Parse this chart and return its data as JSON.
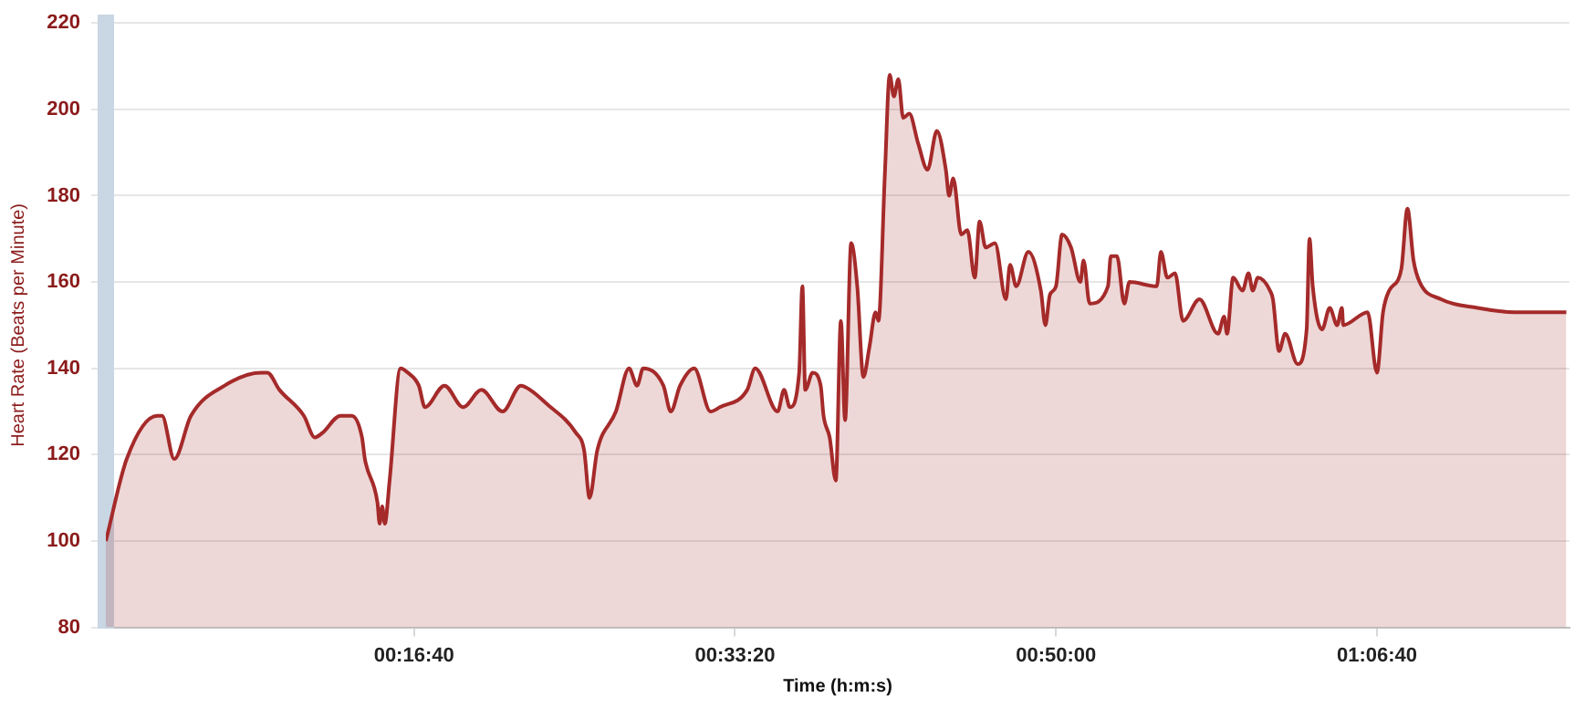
{
  "chart_data": {
    "type": "area",
    "xlabel": "Time (h:m:s)",
    "ylabel": "Heart Rate (Beats per Minute)",
    "xlim": [
      40,
      4600
    ],
    "ylim": [
      80,
      220
    ],
    "xticks": [
      {
        "value": 1000,
        "label": "00:16:40"
      },
      {
        "value": 2000,
        "label": "00:33:20"
      },
      {
        "value": 3000,
        "label": "00:50:00"
      },
      {
        "value": 4000,
        "label": "01:06:40"
      }
    ],
    "yticks": [
      80,
      100,
      120,
      140,
      160,
      180,
      200,
      220
    ],
    "grid": "y",
    "legend": false,
    "marker": "none",
    "line_style": "solid",
    "series": [
      {
        "color": "#a52a2a",
        "x": [
          40,
          105,
          200,
          215,
          253,
          305,
          410,
          524,
          543,
          581,
          657,
          691,
          714,
          771,
          806,
          838,
          847,
          886,
          893,
          901,
          909,
          924,
          958,
          981,
          1015,
          1034,
          1095,
          1153,
          1210,
          1276,
          1333,
          1362,
          1410,
          1505,
          1530,
          1547,
          1571,
          1629,
          1670,
          1695,
          1714,
          1777,
          1800,
          1829,
          1873,
          1924,
          1953,
          2038,
          2063,
          2133,
          2153,
          2171,
          2200,
          2210,
          2219,
          2242,
          2267,
          2276,
          2295,
          2314,
          2330,
          2343,
          2362,
          2381,
          2400,
          2419,
          2438,
          2447,
          2467,
          2482,
          2495,
          2509,
          2524,
          2543,
          2571,
          2600,
          2629,
          2657,
          2667,
          2680,
          2705,
          2724,
          2747,
          2762,
          2781,
          2810,
          2844,
          2857,
          2876,
          2914,
          2953,
          2967,
          2981,
          3000,
          3019,
          3047,
          3076,
          3086,
          3105,
          3162,
          3171,
          3190,
          3213,
          3229,
          3314,
          3327,
          3347,
          3371,
          3396,
          3447,
          3505,
          3524,
          3533,
          3552,
          3581,
          3600,
          3613,
          3629,
          3667,
          3676,
          3695,
          3714,
          3753,
          3781,
          3790,
          3800,
          3829,
          3853,
          3876,
          3891,
          3895,
          3971,
          4000,
          4019,
          4038,
          4076,
          4095,
          4114,
          4133,
          4200,
          4314,
          4429,
          4590
        ],
        "values": [
          100,
          119,
          129,
          129,
          119,
          129,
          136,
          139,
          139,
          135,
          129,
          124,
          125,
          129,
          129,
          124,
          119,
          109,
          104,
          108,
          104,
          114,
          140,
          139,
          136,
          131,
          136,
          131,
          135,
          130,
          136,
          135,
          132,
          125,
          121,
          110,
          121,
          130,
          140,
          136,
          140,
          136,
          130,
          136,
          140,
          130,
          131,
          135,
          140,
          130,
          135,
          131,
          139,
          159,
          135,
          139,
          136,
          129,
          124,
          114,
          151,
          128,
          169,
          159,
          138,
          145,
          153,
          151,
          185,
          208,
          203,
          207,
          198,
          199,
          192,
          186,
          195,
          186,
          180,
          184,
          171,
          172,
          161,
          174,
          168,
          169,
          156,
          164,
          159,
          167,
          158,
          150,
          157,
          159,
          171,
          168,
          160,
          165,
          155,
          159,
          166,
          166,
          155,
          160,
          159,
          167,
          161,
          162,
          151,
          156,
          148,
          152,
          148,
          161,
          158,
          162,
          158,
          161,
          158,
          156,
          144,
          148,
          141,
          149,
          170,
          159,
          149,
          154,
          150,
          154,
          150,
          153,
          139,
          153,
          158,
          163,
          177,
          165,
          160,
          156,
          154,
          153,
          153
        ]
      }
    ]
  }
}
